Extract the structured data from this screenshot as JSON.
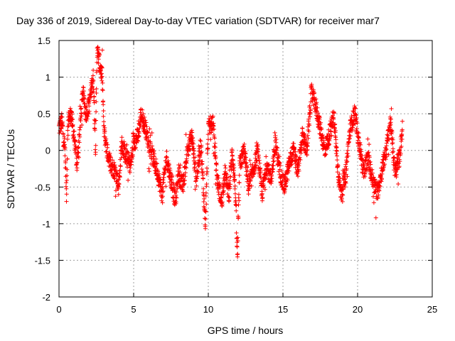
{
  "chart_data": {
    "type": "scatter",
    "title": "Day 336 of 2019, Sidereal Day-to-day VTEC variation (SDTVAR) for receiver mar7",
    "xlabel": "GPS time / hours",
    "ylabel": "SDTVAR / TECUs",
    "xlim": [
      0,
      25
    ],
    "ylim": [
      -2,
      1.5
    ],
    "xticks": [
      0,
      5,
      10,
      15,
      20,
      25
    ],
    "xtick_labels": [
      "0",
      "5",
      "10",
      "15",
      "20",
      "25"
    ],
    "yticks": [
      -2,
      -1.5,
      -1,
      -0.5,
      0,
      0.5,
      1,
      1.5
    ],
    "ytick_labels": [
      "-2",
      "-1.5",
      "-1",
      "-0.5",
      "0",
      "0.5",
      "1",
      "1.5"
    ],
    "grid": true,
    "marker": "+",
    "color": "#ff0000",
    "time_range": [
      0,
      23
    ],
    "series": [
      {
        "name": "SDTVAR",
        "profile": [
          [
            0.0,
            0.3
          ],
          [
            0.2,
            0.4
          ],
          [
            0.4,
            0.0
          ],
          [
            0.5,
            -0.6
          ],
          [
            0.6,
            0.4
          ],
          [
            0.8,
            0.5
          ],
          [
            1.0,
            0.2
          ],
          [
            1.2,
            -0.2
          ],
          [
            1.4,
            0.3
          ],
          [
            1.6,
            0.8
          ],
          [
            1.8,
            0.5
          ],
          [
            2.0,
            0.6
          ],
          [
            2.2,
            0.9
          ],
          [
            2.3,
            1.0
          ],
          [
            2.45,
            0.0
          ],
          [
            2.55,
            1.4
          ],
          [
            2.7,
            1.2
          ],
          [
            2.9,
            1.0
          ],
          [
            3.0,
            0.3
          ],
          [
            3.2,
            0.0
          ],
          [
            3.5,
            -0.2
          ],
          [
            3.8,
            -0.3
          ],
          [
            4.0,
            -0.5
          ],
          [
            4.2,
            0.1
          ],
          [
            4.5,
            -0.1
          ],
          [
            4.8,
            -0.2
          ],
          [
            5.0,
            0.1
          ],
          [
            5.3,
            0.2
          ],
          [
            5.5,
            0.5
          ],
          [
            5.8,
            0.3
          ],
          [
            6.0,
            0.1
          ],
          [
            6.3,
            -0.1
          ],
          [
            6.6,
            -0.3
          ],
          [
            6.9,
            -0.6
          ],
          [
            7.2,
            -0.1
          ],
          [
            7.5,
            -0.4
          ],
          [
            7.8,
            -0.7
          ],
          [
            8.0,
            -0.3
          ],
          [
            8.3,
            -0.5
          ],
          [
            8.6,
            0.0
          ],
          [
            8.9,
            0.2
          ],
          [
            9.2,
            -0.4
          ],
          [
            9.5,
            0.1
          ],
          [
            9.8,
            -1.0
          ],
          [
            10.0,
            0.3
          ],
          [
            10.3,
            0.4
          ],
          [
            10.6,
            -0.4
          ],
          [
            10.9,
            -0.7
          ],
          [
            11.1,
            -0.3
          ],
          [
            11.4,
            -0.6
          ],
          [
            11.6,
            0.0
          ],
          [
            11.8,
            -0.5
          ],
          [
            11.95,
            -1.5
          ],
          [
            12.1,
            -0.2
          ],
          [
            12.4,
            0.0
          ],
          [
            12.7,
            -0.5
          ],
          [
            13.0,
            -0.3
          ],
          [
            13.3,
            0.0
          ],
          [
            13.6,
            -0.6
          ],
          [
            13.9,
            -0.2
          ],
          [
            14.2,
            -0.4
          ],
          [
            14.5,
            0.1
          ],
          [
            14.8,
            -0.3
          ],
          [
            15.1,
            -0.5
          ],
          [
            15.4,
            -0.2
          ],
          [
            15.7,
            0.0
          ],
          [
            16.0,
            -0.3
          ],
          [
            16.3,
            0.2
          ],
          [
            16.6,
            0.0
          ],
          [
            16.9,
            0.8
          ],
          [
            17.2,
            0.6
          ],
          [
            17.5,
            0.3
          ],
          [
            17.8,
            0.0
          ],
          [
            18.1,
            0.2
          ],
          [
            18.4,
            0.5
          ],
          [
            18.7,
            -0.3
          ],
          [
            18.9,
            -0.6
          ],
          [
            19.2,
            -0.3
          ],
          [
            19.5,
            0.3
          ],
          [
            19.8,
            0.5
          ],
          [
            20.1,
            0.1
          ],
          [
            20.4,
            -0.3
          ],
          [
            20.7,
            -0.1
          ],
          [
            21.0,
            -0.4
          ],
          [
            21.3,
            -0.6
          ],
          [
            21.6,
            -0.3
          ],
          [
            21.9,
            0.0
          ],
          [
            22.2,
            0.4
          ],
          [
            22.5,
            -0.3
          ],
          [
            22.8,
            -0.1
          ],
          [
            23.0,
            0.3
          ]
        ],
        "noise": 0.12,
        "n_points": 2300
      }
    ]
  }
}
